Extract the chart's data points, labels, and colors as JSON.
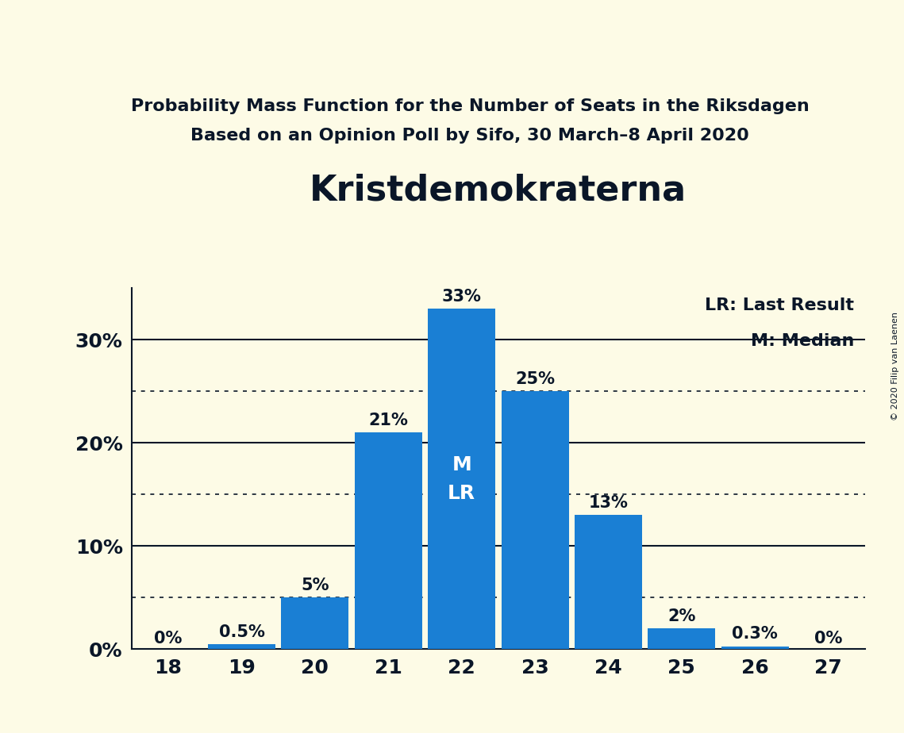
{
  "title": "Kristdemokraterna",
  "subtitle1": "Probability Mass Function for the Number of Seats in the Riksdagen",
  "subtitle2": "Based on an Opinion Poll by Sifo, 30 March–8 April 2020",
  "copyright": "© 2020 Filip van Laenen",
  "seats": [
    18,
    19,
    20,
    21,
    22,
    23,
    24,
    25,
    26,
    27
  ],
  "probabilities": [
    0.0,
    0.5,
    5.0,
    21.0,
    33.0,
    25.0,
    13.0,
    2.0,
    0.3,
    0.0
  ],
  "bar_color": "#1a7fd4",
  "background_color": "#fdfbe6",
  "text_color": "#0a1628",
  "label_texts": [
    "0%",
    "0.5%",
    "5%",
    "21%",
    "33%",
    "25%",
    "13%",
    "2%",
    "0.3%",
    "0%"
  ],
  "median_seat": 22,
  "last_result_seat": 22,
  "legend_lr": "LR: Last Result",
  "legend_m": "M: Median",
  "ytick_values": [
    0,
    10,
    20,
    30
  ],
  "ytick_labels": [
    "0%",
    "10%",
    "20%",
    "30%"
  ],
  "dotted_lines": [
    5,
    15,
    25
  ],
  "solid_lines": [
    10,
    20,
    30
  ],
  "ylim": [
    0,
    35
  ],
  "xlim": [
    17.5,
    27.5
  ]
}
